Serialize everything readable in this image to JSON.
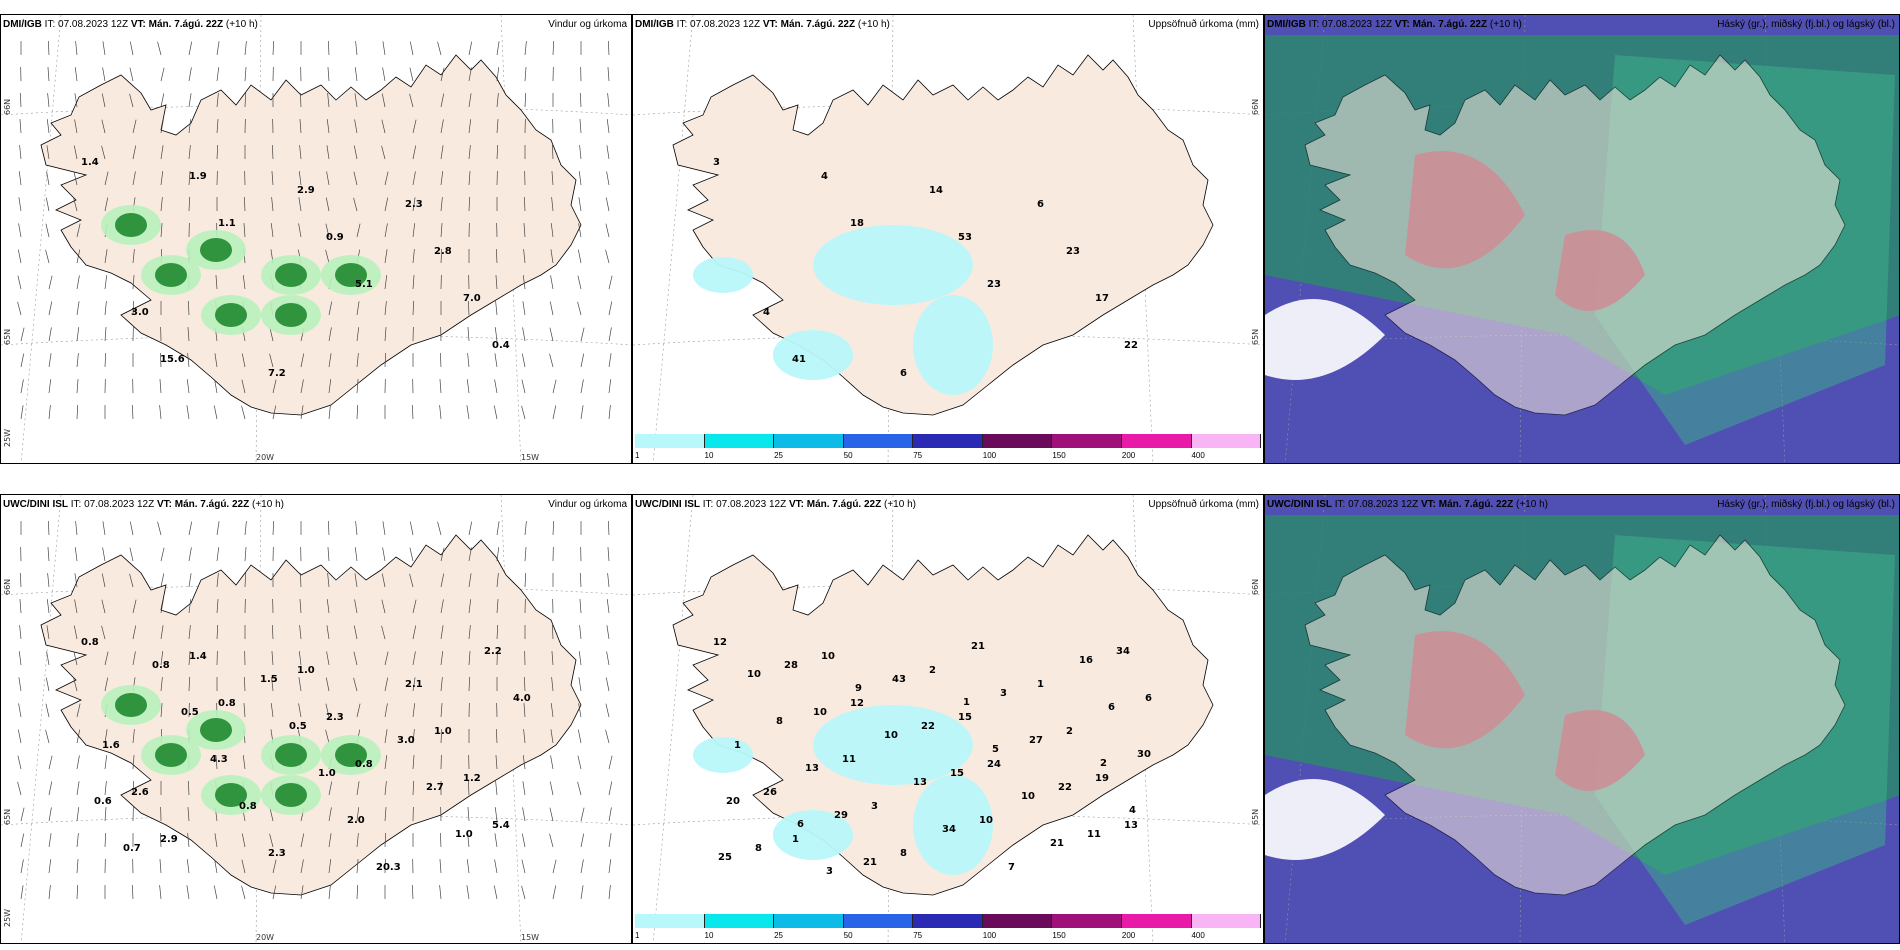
{
  "panels": [
    {
      "model": "DMI/IGB",
      "it": "IT: 07.08.2023 12Z",
      "vt_label": "VT:",
      "vt": "Mán. 7.ágú. 22Z",
      "lead": "(+10 h)",
      "product": "Vindur og úrkoma",
      "kind": "wind",
      "values": [
        "1.4",
        "1.1",
        "5.1",
        "0.4",
        "1.9",
        "0.9",
        "7.0",
        "15.6",
        "2.9",
        "2.8",
        "3.0",
        "7.2",
        "2.3"
      ]
    },
    {
      "model": "DMI/IGB",
      "it": "IT: 07.08.2023 12Z",
      "vt_label": "VT:",
      "vt": "Mán. 7.ágú. 22Z",
      "lead": "(+10 h)",
      "product": "Uppsöfnuð úrkoma (mm)",
      "kind": "accum",
      "values": [
        "3",
        "18",
        "23",
        "22",
        "4",
        "53",
        "17",
        "41",
        "14",
        "23",
        "4",
        "6",
        "6"
      ]
    },
    {
      "model": "DMI/IGB",
      "it": "IT: 07.08.2023 12Z",
      "vt_label": "VT:",
      "vt": "Mán. 7.ágú. 22Z",
      "lead": "(+10 h)",
      "product": "Háský (gr.), miðský (fj.bl.) og lágský (bl.)",
      "kind": "cloud",
      "values": []
    },
    {
      "model": "UWC/DINI ISL",
      "it": "IT: 07.08.2023 12Z",
      "vt_label": "VT:",
      "vt": "Mán. 7.ágú. 22Z",
      "lead": "(+10 h)",
      "product": "Vindur og úrkoma",
      "kind": "wind",
      "values": [
        "0.8",
        "0.8",
        "0.8",
        "5.4",
        "1.4",
        "2.3",
        "1.2",
        "2.9",
        "1.0",
        "1.0",
        "2.6",
        "2.3",
        "2.1",
        "1.6",
        "0.8",
        "20.3",
        "4.0",
        "4.3",
        "2.0",
        "2.2",
        "0.5",
        "1.0",
        "1.0",
        "0.8",
        "0.5",
        "2.7",
        "0.7",
        "1.5",
        "3.0",
        "0.6"
      ]
    },
    {
      "model": "UWC/DINI ISL",
      "it": "IT: 07.08.2023 12Z",
      "vt_label": "VT:",
      "vt": "Mán. 7.ágú. 22Z",
      "lead": "(+10 h)",
      "product": "Uppsöfnuð úrkoma (mm)",
      "kind": "accum",
      "values": [
        "12",
        "12",
        "24",
        "13",
        "10",
        "15",
        "19",
        "1",
        "2",
        "2",
        "26",
        "8",
        "1",
        "1",
        "3",
        "7",
        "6",
        "11",
        "10",
        "34",
        "10",
        "15",
        "11",
        "28",
        "22",
        "22",
        "8",
        "43",
        "27",
        "20",
        "21",
        "3",
        "30",
        "29",
        "21",
        "6",
        "13",
        "34",
        "16",
        "8",
        "13",
        "21",
        "10",
        "10",
        "10",
        "25",
        "9",
        "5",
        "4",
        "3",
        "1",
        "2",
        "6"
      ]
    },
    {
      "model": "UWC/DINI ISL",
      "it": "IT: 07.08.2023 12Z",
      "vt_label": "VT:",
      "vt": "Mán. 7.ágú. 22Z",
      "lead": "(+10 h)",
      "product": "Háský (gr.), miðský (fj.bl.) og lágský (bl.)",
      "kind": "cloud",
      "values": []
    }
  ],
  "axis": {
    "lat_top": "66N",
    "lat_mid": "65N",
    "lat_bot": "25W",
    "lon_a": "20W",
    "lon_b": "15W"
  },
  "colorbar": {
    "labels": [
      "1",
      "10",
      "25",
      "50",
      "75",
      "100",
      "150",
      "200",
      "400"
    ],
    "colors": [
      "#b8f7fa",
      "#08e8ec",
      "#0dbce6",
      "#2a64e6",
      "#2a2ab4",
      "#6a0a5a",
      "#a0107a",
      "#e81aa8",
      "#f8b4f4"
    ]
  },
  "colors": {
    "land": "#f9eadf",
    "ocean": "#ffffff",
    "precip_light": "#b7f2bb",
    "precip_mid": "#1f8a2f",
    "precip_dark": "#0a3e14",
    "cloud_high": "#4f4fb4",
    "cloud_mid": "#2a8a6a",
    "cloud_low": "#9a1a3a"
  }
}
